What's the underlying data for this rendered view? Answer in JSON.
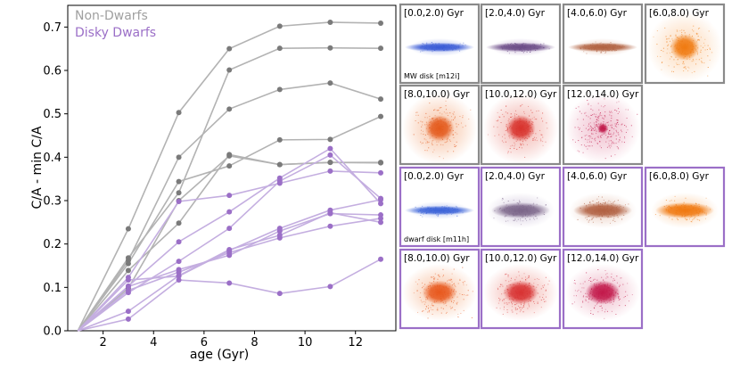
{
  "chart_data": [
    {
      "type": "line",
      "xlabel": "age (Gyr)",
      "ylabel": "C/A - min C/A",
      "xlim": [
        0.6,
        13.6
      ],
      "ylim": [
        0,
        0.75
      ],
      "xticks": [
        2,
        4,
        6,
        8,
        10,
        12
      ],
      "yticks": [
        0.0,
        0.1,
        0.2,
        0.3,
        0.4,
        0.5,
        0.6,
        0.7
      ],
      "x": [
        1,
        3,
        5,
        7,
        9,
        11,
        13
      ],
      "legend_placement": "top-left",
      "legend": [
        {
          "label": "Non-Dwarfs",
          "color": "#a0a0a0"
        },
        {
          "label": "Disky Dwarfs",
          "color": "#9b6fc7"
        }
      ],
      "groups": [
        {
          "name": "Non-Dwarfs",
          "line_color": "#b3b3b3",
          "marker_color": "#7a7a7a",
          "series": [
            {
              "values": [
                0,
                0.235,
                0.503,
                0.65,
                0.702,
                0.711,
                0.709
              ]
            },
            {
              "values": [
                0,
                0.168,
                0.318,
                0.601,
                0.651,
                0.652,
                0.651
              ]
            },
            {
              "values": [
                0,
                0.162,
                0.4,
                0.511,
                0.556,
                0.571,
                0.534
              ]
            },
            {
              "values": [
                0,
                0.155,
                0.344,
                0.38,
                0.44,
                0.441,
                0.494
              ]
            },
            {
              "values": [
                0,
                0.139,
                0.248,
                0.406,
                0.383,
                0.388,
                0.388
              ]
            },
            {
              "values": [
                0,
                0.098,
                0.3,
                0.403,
                0.383,
                0.388,
                0.387
              ]
            }
          ]
        },
        {
          "name": "Disky Dwarfs",
          "line_color": "#c4aee0",
          "marker_color": "#9b6fc7",
          "series": [
            {
              "values": [
                0,
                0.123,
                0.298,
                0.312,
                0.34,
                0.368,
                0.364
              ]
            },
            {
              "values": [
                0,
                0.103,
                0.205,
                0.274,
                0.352,
                0.42,
                0.293
              ]
            },
            {
              "values": [
                0,
                0.088,
                0.16,
                0.236,
                0.345,
                0.405,
                0.305
              ]
            },
            {
              "values": [
                0,
                0.117,
                0.126,
                0.185,
                0.236,
                0.278,
                0.302
              ]
            },
            {
              "values": [
                0,
                0.102,
                0.141,
                0.174,
                0.23,
                0.27,
                0.267
              ]
            },
            {
              "values": [
                0,
                0.093,
                0.135,
                0.18,
                0.214,
                0.241,
                0.259
              ]
            },
            {
              "values": [
                0,
                0.045,
                0.127,
                0.187,
                0.22,
                0.272,
                0.25
              ]
            },
            {
              "values": [
                0,
                0.027,
                0.117,
                0.11,
                0.086,
                0.102,
                0.165
              ]
            }
          ]
        }
      ]
    },
    {
      "type": "image-grid",
      "groups": [
        {
          "name": "MW disk",
          "note": "MW disk [m12i]",
          "border_color": "#8a8a8a",
          "panels": [
            {
              "label": "[0.0,2.0) Gyr",
              "shape": "thin-disk",
              "color": "#3a5bd6",
              "halo": "#b9c4f0"
            },
            {
              "label": "[2.0,4.0) Gyr",
              "shape": "thin-disk",
              "color": "#6a4a86",
              "halo": "#d2c3de"
            },
            {
              "label": "[4.0,6.0) Gyr",
              "shape": "thin-disk",
              "color": "#b0603f",
              "halo": "#ecd1c4"
            },
            {
              "label": "[6.0,8.0) Gyr",
              "shape": "sphere",
              "color": "#f07a10",
              "halo": "#fcd9b8"
            },
            {
              "label": "[8.0,10.0) Gyr",
              "shape": "sphere",
              "color": "#e45a1c",
              "halo": "#f7c2a3"
            },
            {
              "label": "[10.0,12.0) Gyr",
              "shape": "sphere",
              "color": "#d8322c",
              "halo": "#f2b3ad"
            },
            {
              "label": "[12.0,14.0) Gyr",
              "shape": "point",
              "color": "#c01648",
              "halo": "#efbccc"
            }
          ]
        },
        {
          "name": "dwarf disk",
          "note": "dwarf disk [m11h]",
          "border_color": "#9b6fc7",
          "panels": [
            {
              "label": "[0.0,2.0) Gyr",
              "shape": "thin-disk",
              "color": "#3a62d8",
              "halo": "#c2cdf2"
            },
            {
              "label": "[2.0,4.0) Gyr",
              "shape": "thick-disk",
              "color": "#7a6488",
              "halo": "#d9d0e2"
            },
            {
              "label": "[4.0,6.0) Gyr",
              "shape": "thick-disk",
              "color": "#b05f40",
              "halo": "#ecd2c6"
            },
            {
              "label": "[6.0,8.0) Gyr",
              "shape": "thick-disk",
              "color": "#f0780f",
              "halo": "#fbd7b5"
            },
            {
              "label": "[8.0,10.0) Gyr",
              "shape": "oval",
              "color": "#e8581d",
              "halo": "#f8c6a8"
            },
            {
              "label": "[10.0,12.0) Gyr",
              "shape": "oval",
              "color": "#d83232",
              "halo": "#f3b7b1"
            },
            {
              "label": "[12.0,14.0) Gyr",
              "shape": "oval",
              "color": "#c2184a",
              "halo": "#efbdcc"
            }
          ]
        }
      ]
    }
  ]
}
